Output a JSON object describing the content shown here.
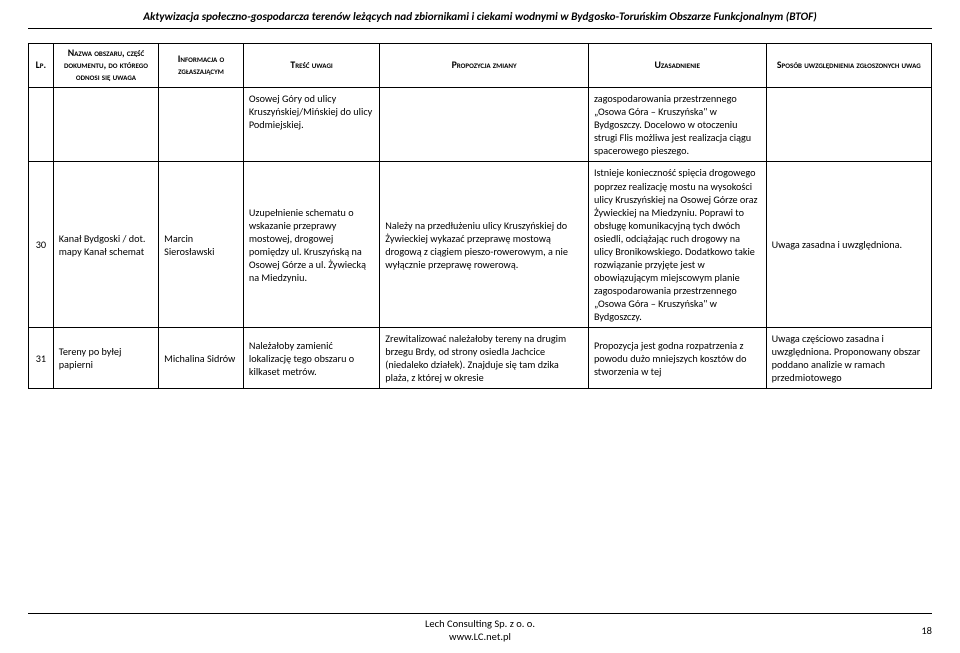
{
  "doc_title": "Aktywizacja społeczno-gospodarcza terenów leżących nad zbiornikami i ciekami wodnymi w Bydgosko-Toruńskim Obszarze Funkcjonalnym (BTOF)",
  "headers": {
    "lp": "Lp.",
    "nazwa": "Nazwa obszaru, część dokumentu, do którego odnosi się uwaga",
    "info": "Informacja o zgłaszającym",
    "tresc": "Treść uwagi",
    "prop": "Propozycja zmiany",
    "uzas": "Uzasadnienie",
    "sposob": "Sposób uwzględnienia zgłoszonych uwag"
  },
  "rows": [
    {
      "lp": "",
      "nazwa": "",
      "info": "",
      "tresc": "Osowej Góry od ulicy Kruszyńskiej/Mińskiej do ulicy Podmiejskiej.",
      "prop": "",
      "uzas": "zagospodarowania przestrzennego „Osowa Góra – Kruszyńska\" w Bydgoszczy. Docelowo w otoczeniu strugi Flis możliwa jest realizacja ciągu spacerowego pieszego.",
      "sposob": ""
    },
    {
      "lp": "30",
      "nazwa": "Kanał Bydgoski / dot. mapy Kanał schemat",
      "info": "Marcin Sierosławski",
      "tresc": "Uzupełnienie schematu o wskazanie przeprawy mostowej, drogowej pomiędzy ul. Kruszyńską na Osowej Górze a ul. Żywiecką na Miedzyniu.",
      "prop": "Należy na przedłużeniu ulicy Kruszyńskiej do Żywieckiej wykazać przeprawę mostową drogową z ciągiem pieszo-rowerowym, a nie wyłącznie przeprawę rowerową.",
      "uzas": "Istnieje konieczność spięcia drogowego poprzez realizację mostu na wysokości ulicy Kruszyńskiej na Osowej Górze oraz Żywieckiej na Miedzyniu. Poprawi to obsługę komunikacyjną tych dwóch osiedli, odciążając ruch drogowy na ulicy Bronikowskiego. Dodatkowo takie rozwiązanie przyjęte jest w obowiązującym miejscowym planie zagospodarowania przestrzennego „Osowa Góra – Kruszyńska\" w Bydgoszczy.",
      "sposob": "Uwaga zasadna i uwzględniona."
    },
    {
      "lp": "31",
      "nazwa": "Tereny po byłej papierni",
      "info": "Michalina Sidrów",
      "tresc": "Należałoby zamienić lokalizację tego obszaru o kilkaset metrów.",
      "prop": "Zrewitalizować należałoby tereny na drugim brzegu Brdy, od strony osiedla Jachcice (niedaleko działek). Znajduje się tam dzika plaża, z której w okresie",
      "uzas": "Propozycja jest godna rozpatrzenia z powodu dużo mniejszych kosztów do stworzenia w tej",
      "sposob": "Uwaga częściowo zasadna i uwzględniona. Proponowany obszar poddano analizie w ramach przedmiotowego"
    }
  ],
  "footer": {
    "line1": "Lech Consulting Sp. z o. o.",
    "line2": "www.LC.net.pl",
    "page": "18"
  }
}
